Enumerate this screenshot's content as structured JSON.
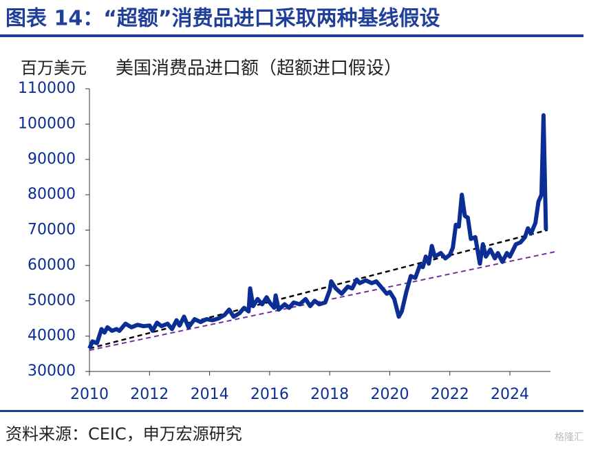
{
  "header": {
    "title": "图表 14：“超额”消费品进口采取两种基线假设"
  },
  "chart_data": {
    "type": "line",
    "title": "美国消费品进口额（超额进口假设）",
    "y_label": "百万美元",
    "xlim": [
      2010,
      2025.58
    ],
    "xticks": [
      2010,
      2012,
      2014,
      2016,
      2018,
      2020,
      2022,
      2024
    ],
    "ylim": [
      30000,
      110000
    ],
    "yticks": [
      30000,
      40000,
      50000,
      60000,
      70000,
      80000,
      90000,
      100000,
      110000
    ],
    "series": [
      {
        "color": "#0b2e94",
        "width": 6,
        "dash": null,
        "x": [
          2010.0,
          2010.1,
          2010.25,
          2010.4,
          2010.5,
          2010.6,
          2010.75,
          2010.9,
          2011.0,
          2011.2,
          2011.4,
          2011.6,
          2011.8,
          2012.0,
          2012.1,
          2012.25,
          2012.4,
          2012.6,
          2012.75,
          2012.9,
          2013.0,
          2013.15,
          2013.3,
          2013.5,
          2013.7,
          2013.9,
          2014.1,
          2014.3,
          2014.5,
          2014.65,
          2014.8,
          2015.0,
          2015.15,
          2015.3,
          2015.35,
          2015.45,
          2015.6,
          2015.75,
          2015.9,
          2016.0,
          2016.15,
          2016.2,
          2016.3,
          2016.5,
          2016.65,
          2016.8,
          2017.0,
          2017.2,
          2017.35,
          2017.5,
          2017.65,
          2017.85,
          2018.0,
          2018.05,
          2018.2,
          2018.4,
          2018.6,
          2018.75,
          2018.9,
          2019.0,
          2019.2,
          2019.4,
          2019.55,
          2019.7,
          2019.9,
          2020.0,
          2020.15,
          2020.3,
          2020.4,
          2020.55,
          2020.7,
          2020.85,
          2021.0,
          2021.1,
          2021.2,
          2021.3,
          2021.4,
          2021.5,
          2021.7,
          2021.85,
          2022.0,
          2022.1,
          2022.2,
          2022.3,
          2022.4,
          2022.5,
          2022.6,
          2022.7,
          2022.85,
          2023.0,
          2023.1,
          2023.2,
          2023.35,
          2023.5,
          2023.6,
          2023.75,
          2023.9,
          2024.0,
          2024.2,
          2024.35,
          2024.5,
          2024.6,
          2024.7,
          2024.85,
          2024.95,
          2025.05,
          2025.12,
          2025.2
        ],
        "values": [
          36500,
          38500,
          38000,
          42000,
          41000,
          42500,
          41500,
          42000,
          41500,
          43500,
          42500,
          43200,
          42800,
          43000,
          41500,
          43800,
          42800,
          43500,
          42000,
          44500,
          43000,
          45500,
          42500,
          44800,
          44000,
          44800,
          44500,
          45000,
          46000,
          47500,
          45500,
          46500,
          48000,
          47000,
          53500,
          48500,
          50500,
          49000,
          51000,
          49500,
          48000,
          51500,
          47500,
          49000,
          48000,
          49500,
          49000,
          50500,
          48500,
          50000,
          49000,
          49500,
          53000,
          55500,
          53500,
          52000,
          54000,
          53500,
          56000,
          55000,
          55800,
          55000,
          55500,
          54000,
          52000,
          52500,
          50500,
          45500,
          47000,
          52500,
          57000,
          56500,
          60000,
          59500,
          62500,
          60500,
          65500,
          62500,
          63500,
          62000,
          63000,
          65000,
          71500,
          71000,
          80000,
          74000,
          73500,
          67500,
          68000,
          60500,
          66000,
          62500,
          64500,
          62000,
          63500,
          61000,
          63500,
          62500,
          66000,
          66500,
          68000,
          70500,
          69000,
          72000,
          78000,
          80000,
          102500,
          70000
        ]
      },
      {
        "color": "#000000",
        "width": 2.5,
        "dash": "7 5",
        "x": [
          2010.0,
          2025.25
        ],
        "values": [
          36500,
          70000
        ]
      },
      {
        "color": "#7030a0",
        "width": 2,
        "dash": "7 5",
        "x": [
          2010.0,
          2025.58
        ],
        "values": [
          36000,
          64000
        ]
      }
    ]
  },
  "footer": {
    "source": "资料来源：CEIC，申万宏源研究",
    "watermark": "格隆汇"
  }
}
